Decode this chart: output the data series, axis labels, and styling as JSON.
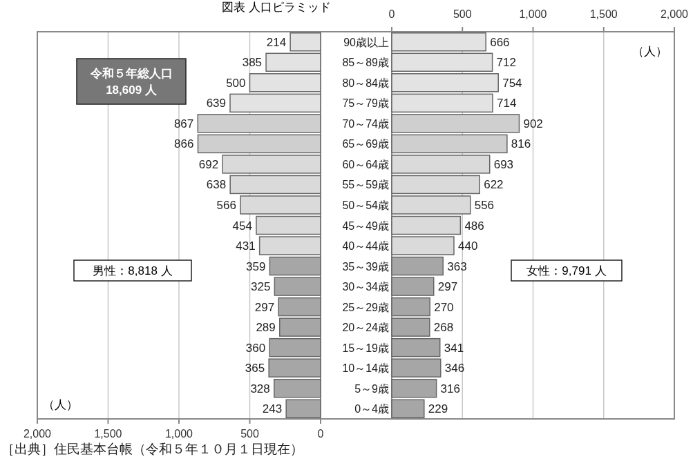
{
  "chart_data": [
    {
      "type": "bar",
      "orientation": "horizontal",
      "title": "図表 人口ピラミッド",
      "xlabel": "（人）",
      "categories": [
        "90歳以上",
        "85～89歳",
        "80～84歳",
        "75～79歳",
        "70～74歳",
        "65～69歳",
        "60～64歳",
        "55～59歳",
        "50～54歳",
        "45～49歳",
        "40～44歳",
        "35～39歳",
        "30～34歳",
        "25～29歳",
        "20～24歳",
        "15～19歳",
        "10～14歳",
        "5～9歳",
        "0～4歳"
      ],
      "values": [
        214,
        385,
        500,
        639,
        867,
        866,
        692,
        638,
        566,
        454,
        431,
        359,
        325,
        297,
        289,
        360,
        365,
        328,
        243
      ],
      "colors": [
        "#e3e3e3",
        "#e3e3e3",
        "#e3e3e3",
        "#e3e3e3",
        "#cfcfcf",
        "#cfcfcf",
        "#dadada",
        "#dadada",
        "#dadada",
        "#dadada",
        "#dadada",
        "#a6a6a6",
        "#a6a6a6",
        "#a6a6a6",
        "#a6a6a6",
        "#a6a6a6",
        "#a6a6a6",
        "#a6a6a6",
        "#a6a6a6"
      ],
      "xlim": [
        2000,
        0
      ],
      "xticks": [
        {
          "value": 2000,
          "label": "2,000"
        },
        {
          "value": 1500,
          "label": "1,500"
        },
        {
          "value": 1000,
          "label": "1,000"
        },
        500,
        0
      ],
      "grid": "x",
      "data_labels": true,
      "annotations": [
        "令和５年総人口\n18,609 人",
        "男性：8,818 人",
        "［出典］住民基本台帳（令和５年１０月１日現在）"
      ]
    },
    {
      "type": "bar",
      "orientation": "horizontal",
      "xlabel": "（人）",
      "tick_labels": "x",
      "categories": [
        null,
        null,
        null,
        null,
        null,
        null,
        null,
        null,
        null,
        null,
        null,
        null,
        null,
        null,
        null,
        null,
        null,
        null,
        null
      ],
      "values": [
        666,
        712,
        754,
        714,
        902,
        816,
        693,
        622,
        556,
        486,
        440,
        363,
        297,
        270,
        268,
        341,
        346,
        316,
        229
      ],
      "colors": [
        "#e3e3e3",
        "#e3e3e3",
        "#e3e3e3",
        "#e3e3e3",
        "#cfcfcf",
        "#cfcfcf",
        "#dadada",
        "#dadada",
        "#dadada",
        "#dadada",
        "#dadada",
        "#a6a6a6",
        "#a6a6a6",
        "#a6a6a6",
        "#a6a6a6",
        "#a6a6a6",
        "#a6a6a6",
        "#a6a6a6",
        "#a6a6a6"
      ],
      "x2lim": [
        0,
        2000
      ],
      "x2ticks": [
        0,
        500,
        {
          "value": 1000,
          "label": "1,000"
        },
        {
          "value": 1500,
          "label": "1,500"
        },
        {
          "value": 2000,
          "label": "2,000"
        }
      ],
      "grid": "x",
      "data_labels": true,
      "annotations": [
        "女性：9,791 人"
      ]
    }
  ]
}
